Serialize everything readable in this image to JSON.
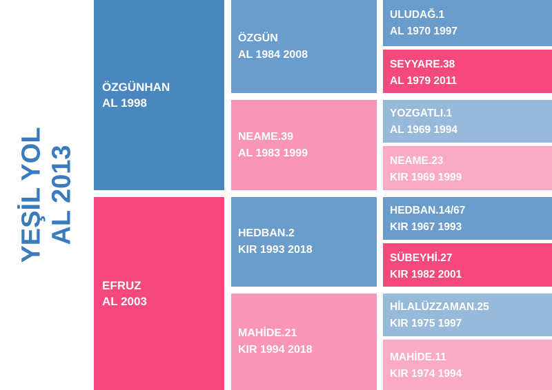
{
  "root": {
    "line1": "YEŞİL YOL",
    "line2": "AL 2013"
  },
  "level1": [
    {
      "name": "ÖZGÜNHAN",
      "detail": "AL 1998",
      "color": "#4a86c0"
    },
    {
      "name": "EFRUZ",
      "detail": "AL 2003",
      "color": "#f5497e"
    }
  ],
  "level2": [
    {
      "name": "ÖZGÜN",
      "detail": "AL 1984 2008",
      "color": "#6a9ccc"
    },
    {
      "name": "NEAME.39",
      "detail": "AL 1983 1999",
      "color": "#fb95b7"
    },
    {
      "name": "HEDBAN.2",
      "detail": "KIR 1993 2018",
      "color": "#6a9ccc"
    },
    {
      "name": "MAHİDE.21",
      "detail": "KIR 1994 2018",
      "color": "#fb95b7"
    }
  ],
  "level3": [
    {
      "name": "ULUDAĞ.1",
      "detail": "AL 1970 1997",
      "color": "#6a9ccc"
    },
    {
      "name": "SEYYARE.38",
      "detail": "AL 1979 2011",
      "color": "#f5497e"
    },
    {
      "name": "YOZGATLI.1",
      "detail": "AL 1969 1994",
      "color": "#97b9da"
    },
    {
      "name": "NEAME.23",
      "detail": "KIR 1969 1999",
      "color": "#fcaac7"
    },
    {
      "name": "HEDBAN.14/67",
      "detail": "KIR 1967 1993",
      "color": "#6a9ccc"
    },
    {
      "name": "SÜBEYHİ.27",
      "detail": "KIR 1982 2001",
      "color": "#f5497e"
    },
    {
      "name": "HİLALÜZZAMAN.25",
      "detail": "KIR 1975 1997",
      "color": "#97b9da"
    },
    {
      "name": "MAHİDE.11",
      "detail": "KIR 1974 1994",
      "color": "#fcaac7"
    }
  ]
}
